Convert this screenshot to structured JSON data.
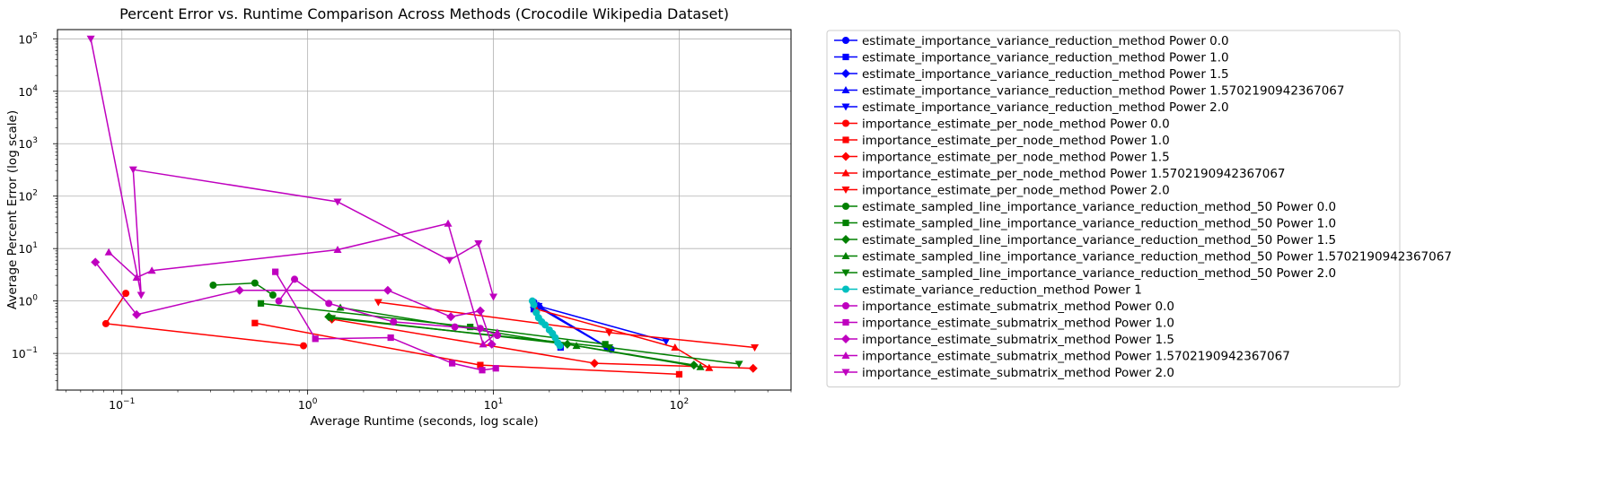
{
  "chart_data": {
    "type": "line",
    "title": "Percent Error vs. Runtime Comparison Across Methods (Crocodile Wikipedia Dataset)",
    "xlabel": "Average Runtime (seconds, log scale)",
    "ylabel": "Average Percent Error (log scale)",
    "xscale": "log",
    "yscale": "log",
    "xlim": [
      0.045,
      400
    ],
    "ylim": [
      0.02,
      150000
    ],
    "xticks": [
      {
        "v": 0.1,
        "b": "10",
        "e": "−1"
      },
      {
        "v": 1,
        "b": "10",
        "e": "0"
      },
      {
        "v": 10,
        "b": "10",
        "e": "1"
      },
      {
        "v": 100,
        "b": "10",
        "e": "2"
      }
    ],
    "yticks": [
      {
        "v": 0.1,
        "b": "10",
        "e": "−1"
      },
      {
        "v": 1,
        "b": "10",
        "e": "0"
      },
      {
        "v": 10,
        "b": "10",
        "e": "1"
      },
      {
        "v": 100,
        "b": "10",
        "e": "2"
      },
      {
        "v": 1000,
        "b": "10",
        "e": "3"
      },
      {
        "v": 10000,
        "b": "10",
        "e": "4"
      },
      {
        "v": 100000,
        "b": "10",
        "e": "5"
      }
    ],
    "grid": true,
    "legend_position": "outside-right",
    "series": [
      {
        "name": "estimate_importance_variance_reduction_method Power 0.0",
        "color": "#0000ff",
        "marker": "circle",
        "points": [
          [
            16.5,
            0.95
          ],
          [
            17.5,
            0.8
          ],
          [
            43,
            0.12
          ]
        ]
      },
      {
        "name": "estimate_importance_variance_reduction_method Power 1.0",
        "color": "#0000ff",
        "marker": "square",
        "points": [
          [
            16.5,
            0.7
          ],
          [
            23,
            0.13
          ]
        ]
      },
      {
        "name": "estimate_importance_variance_reduction_method Power 1.5",
        "color": "#0000ff",
        "marker": "diamond",
        "points": [
          [
            17.5,
            0.8
          ],
          [
            41,
            0.13
          ]
        ]
      },
      {
        "name": "estimate_importance_variance_reduction_method Power 1.5702190942367067",
        "color": "#0000ff",
        "marker": "triangle-up",
        "points": [
          [
            16.5,
            0.85
          ],
          [
            41,
            0.13
          ]
        ]
      },
      {
        "name": "estimate_importance_variance_reduction_method Power 2.0",
        "color": "#0000ff",
        "marker": "triangle-down",
        "points": [
          [
            17.5,
            0.8
          ],
          [
            85,
            0.17
          ]
        ]
      },
      {
        "name": "importance_estimate_per_node_method Power 0.0",
        "color": "#ff0000",
        "marker": "circle",
        "points": [
          [
            0.105,
            1.4
          ],
          [
            0.082,
            0.37
          ],
          [
            0.95,
            0.14
          ]
        ]
      },
      {
        "name": "importance_estimate_per_node_method Power 1.0",
        "color": "#ff0000",
        "marker": "square",
        "points": [
          [
            0.52,
            0.38
          ],
          [
            8.5,
            0.06
          ],
          [
            100,
            0.04
          ]
        ]
      },
      {
        "name": "importance_estimate_per_node_method Power 1.5",
        "color": "#ff0000",
        "marker": "diamond",
        "points": [
          [
            1.35,
            0.45
          ],
          [
            35,
            0.065
          ],
          [
            250,
            0.052
          ]
        ]
      },
      {
        "name": "importance_estimate_per_node_method Power 1.5702190942367067",
        "color": "#ff0000",
        "marker": "triangle-up",
        "points": [
          [
            17,
            0.7
          ],
          [
            95,
            0.13
          ],
          [
            145,
            0.053
          ]
        ]
      },
      {
        "name": "importance_estimate_per_node_method Power 2.0",
        "color": "#ff0000",
        "marker": "triangle-down",
        "points": [
          [
            2.4,
            0.95
          ],
          [
            42,
            0.25
          ],
          [
            255,
            0.13
          ]
        ]
      },
      {
        "name": "estimate_sampled_line_importance_variance_reduction_method_50 Power 0.0",
        "color": "#008000",
        "marker": "circle",
        "points": [
          [
            0.31,
            2.0
          ],
          [
            0.52,
            2.2
          ],
          [
            0.65,
            1.3
          ]
        ]
      },
      {
        "name": "estimate_sampled_line_importance_variance_reduction_method_50 Power 1.0",
        "color": "#008000",
        "marker": "square",
        "points": [
          [
            0.56,
            0.9
          ],
          [
            7.5,
            0.32
          ],
          [
            40,
            0.15
          ]
        ]
      },
      {
        "name": "estimate_sampled_line_importance_variance_reduction_method_50 Power 1.5",
        "color": "#008000",
        "marker": "diamond",
        "points": [
          [
            1.3,
            0.5
          ],
          [
            25,
            0.15
          ],
          [
            120,
            0.06
          ]
        ]
      },
      {
        "name": "estimate_sampled_line_importance_variance_reduction_method_50 Power 1.5702190942367067",
        "color": "#008000",
        "marker": "triangle-up",
        "points": [
          [
            1.5,
            0.75
          ],
          [
            28,
            0.14
          ],
          [
            130,
            0.055
          ]
        ]
      },
      {
        "name": "estimate_sampled_line_importance_variance_reduction_method_50 Power 2.0",
        "color": "#008000",
        "marker": "triangle-down",
        "points": [
          [
            1.35,
            0.47
          ],
          [
            42,
            0.13
          ],
          [
            210,
            0.063
          ]
        ]
      },
      {
        "name": "estimate_variance_reduction_method Power 1",
        "color": "#00bfbf",
        "marker": "circle",
        "points": [
          [
            16.2,
            1.0
          ],
          [
            16.5,
            0.85
          ],
          [
            17.0,
            0.6
          ],
          [
            17.5,
            0.48
          ],
          [
            18.2,
            0.4
          ],
          [
            19.0,
            0.35
          ],
          [
            20.0,
            0.28
          ],
          [
            20.8,
            0.24
          ],
          [
            21.5,
            0.2
          ],
          [
            22.2,
            0.16
          ],
          [
            22.8,
            0.14
          ]
        ]
      },
      {
        "name": "importance_estimate_submatrix_method Power 0.0",
        "color": "#bf00bf",
        "marker": "circle",
        "points": [
          [
            0.7,
            1.0
          ],
          [
            0.85,
            2.6
          ],
          [
            1.3,
            0.9
          ],
          [
            2.9,
            0.4
          ],
          [
            6.2,
            0.32
          ],
          [
            8.5,
            0.3
          ],
          [
            10.5,
            0.22
          ]
        ]
      },
      {
        "name": "importance_estimate_submatrix_method Power 1.0",
        "color": "#bf00bf",
        "marker": "square",
        "points": [
          [
            0.67,
            3.6
          ],
          [
            1.1,
            0.19
          ],
          [
            2.8,
            0.2
          ],
          [
            6.0,
            0.065
          ],
          [
            8.7,
            0.048
          ],
          [
            10.3,
            0.052
          ]
        ]
      },
      {
        "name": "importance_estimate_submatrix_method Power 1.5",
        "color": "#bf00bf",
        "marker": "diamond",
        "points": [
          [
            0.072,
            5.5
          ],
          [
            0.12,
            0.55
          ],
          [
            0.43,
            1.6
          ],
          [
            2.7,
            1.6
          ],
          [
            5.9,
            0.5
          ],
          [
            8.5,
            0.65
          ],
          [
            9.8,
            0.15
          ]
        ]
      },
      {
        "name": "importance_estimate_submatrix_method Power 1.5702190942367067",
        "color": "#bf00bf",
        "marker": "triangle-up",
        "points": [
          [
            0.085,
            8.5
          ],
          [
            0.12,
            2.8
          ],
          [
            0.145,
            3.8
          ],
          [
            1.45,
            9.5
          ],
          [
            5.7,
            30
          ],
          [
            8.8,
            0.15
          ],
          [
            10.5,
            0.25
          ]
        ]
      },
      {
        "name": "importance_estimate_submatrix_method Power 2.0",
        "color": "#bf00bf",
        "marker": "triangle-down",
        "points": [
          [
            0.068,
            100000
          ],
          [
            0.127,
            1.3
          ],
          [
            0.115,
            320
          ],
          [
            1.45,
            78
          ],
          [
            5.8,
            6.0
          ],
          [
            8.3,
            12.5
          ],
          [
            10.0,
            1.2
          ]
        ]
      }
    ]
  }
}
